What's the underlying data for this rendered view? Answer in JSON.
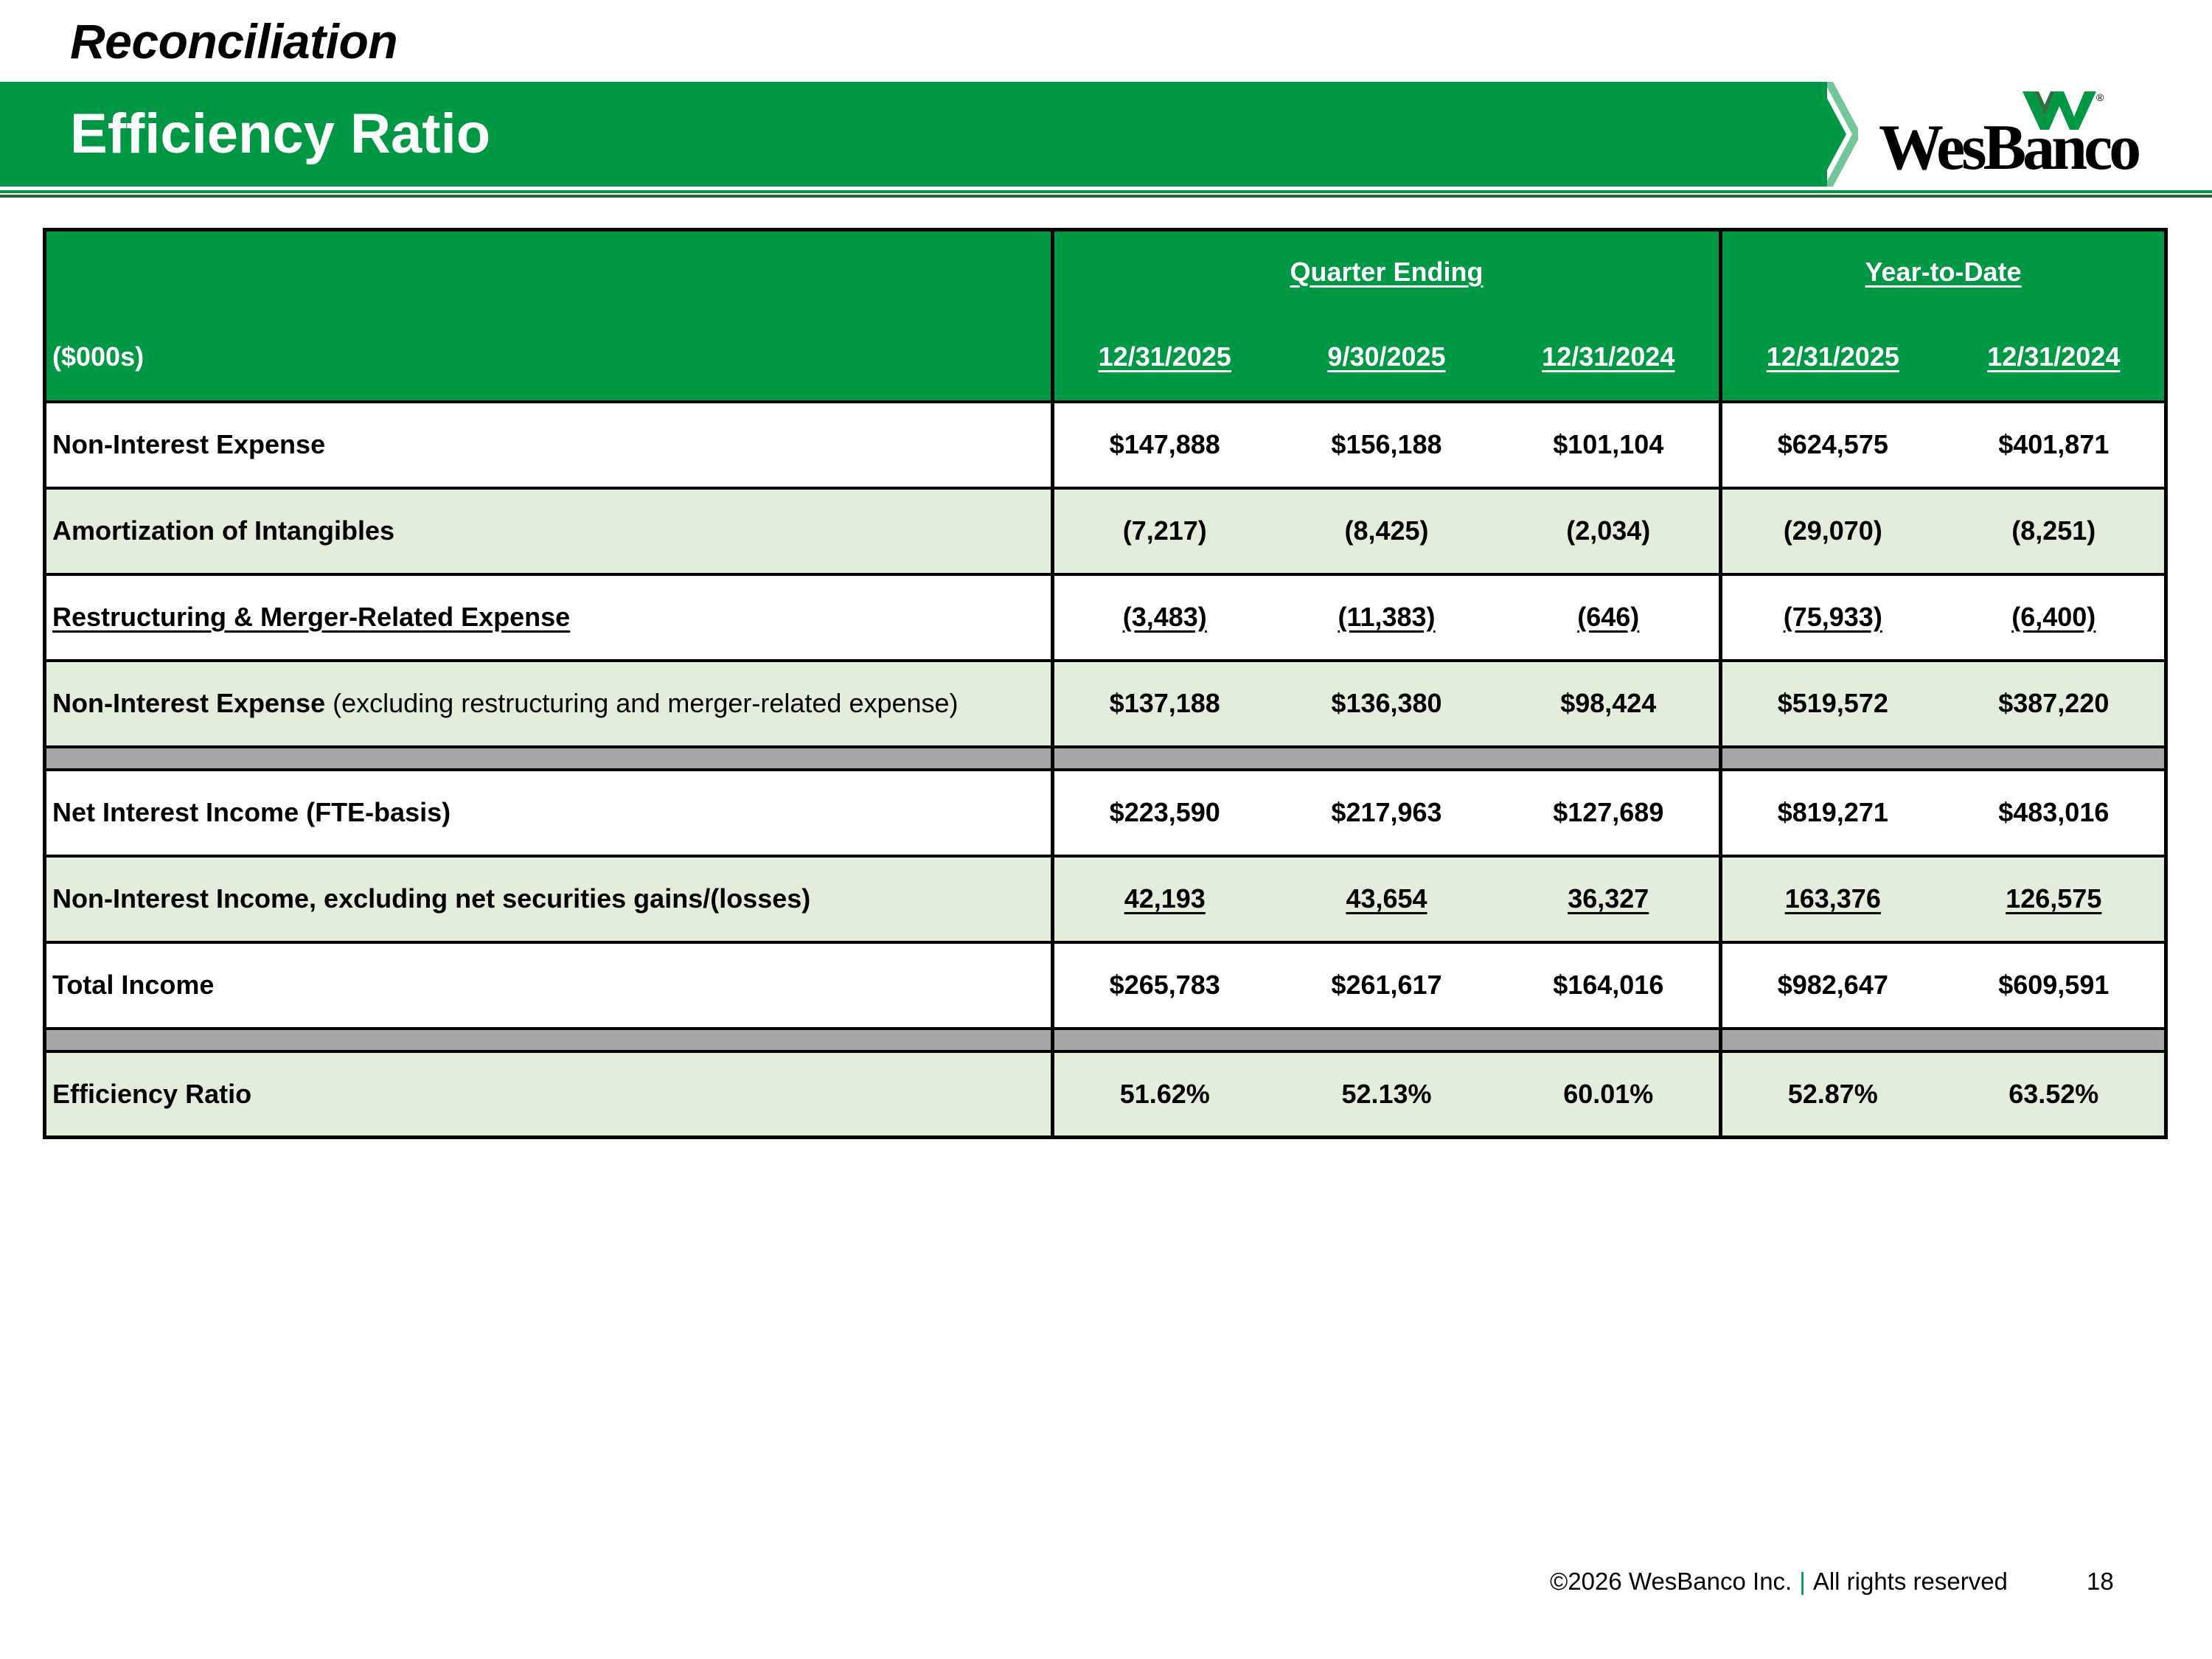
{
  "section_title": "Reconciliation",
  "banner_title": "Efficiency Ratio",
  "logo_text": "WesBanco",
  "table": {
    "unit_label": "($000s)",
    "groups": {
      "quarter": "Quarter Ending",
      "ytd": "Year-to-Date"
    },
    "dates": [
      "12/31/2025",
      "9/30/2025",
      "12/31/2024",
      "12/31/2025",
      "12/31/2024"
    ],
    "rows": [
      {
        "label": "Non-Interest Expense",
        "values": [
          "$147,888",
          "$156,188",
          "$101,104",
          "$624,575",
          "$401,871"
        ]
      },
      {
        "label": "Amortization of Intangibles",
        "values": [
          "(7,217)",
          "(8,425)",
          "(2,034)",
          "(29,070)",
          "(8,251)"
        ]
      },
      {
        "label": "Restructuring & Merger-Related Expense",
        "values": [
          "(3,483)",
          "(11,383)",
          "(646)",
          "(75,933)",
          "(6,400)"
        ]
      },
      {
        "label": "Non-Interest Expense",
        "label_note": "(excluding restructuring and merger-related expense)",
        "values": [
          "$137,188",
          "$136,380",
          "$98,424",
          "$519,572",
          "$387,220"
        ]
      },
      {
        "label": "Net Interest Income (FTE-basis)",
        "values": [
          "$223,590",
          "$217,963",
          "$127,689",
          "$819,271",
          "$483,016"
        ]
      },
      {
        "label": "Non-Interest Income, excluding net securities gains/(losses)",
        "values": [
          "42,193",
          "43,654",
          "36,327",
          "163,376",
          "126,575"
        ]
      },
      {
        "label": "Total Income",
        "values": [
          "$265,783",
          "$261,617",
          "$164,016",
          "$982,647",
          "$609,591"
        ]
      },
      {
        "label": "Efficiency Ratio",
        "values": [
          "51.62%",
          "52.13%",
          "60.01%",
          "52.87%",
          "63.52%"
        ]
      }
    ]
  },
  "footer": {
    "copyright": "©2026 WesBanco Inc.",
    "separator": "|",
    "rights": "All rights reserved",
    "page_number": "18"
  },
  "colors": {
    "brand_green": "#009845",
    "row_tint": "#e3eddb",
    "spacer_gray": "#a6a6a6"
  }
}
